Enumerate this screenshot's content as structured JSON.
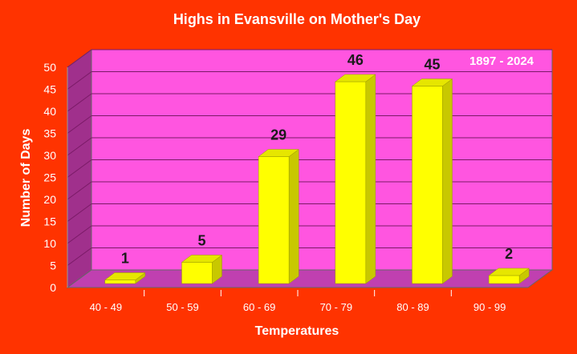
{
  "chart_data": {
    "type": "bar",
    "title": "Highs in Evansville on Mother's Day",
    "subtitle": "1897 - 2024",
    "xlabel": "Temperatures",
    "ylabel": "Number of Days",
    "categories": [
      "40 - 49",
      "50 - 59",
      "60 - 69",
      "70 - 79",
      "80 - 89",
      "90 - 99"
    ],
    "values": [
      1,
      5,
      29,
      46,
      45,
      2
    ],
    "ylim": [
      0,
      50
    ],
    "yticks": [
      0,
      5,
      10,
      15,
      20,
      25,
      30,
      35,
      40,
      45,
      50
    ],
    "grid": true,
    "legend": "none",
    "colors": {
      "background": "#ff3300",
      "plot_back_wall": "#ff55e0",
      "plot_side_wall": "#a0308c",
      "plot_floor": "#c040b0",
      "bar_front": "#ffff00",
      "bar_side": "#c8c800",
      "bar_top": "#e6e600",
      "gridline": "#7a1a66",
      "text_white": "#ffffff",
      "text_dark": "#1a1a1a"
    }
  }
}
